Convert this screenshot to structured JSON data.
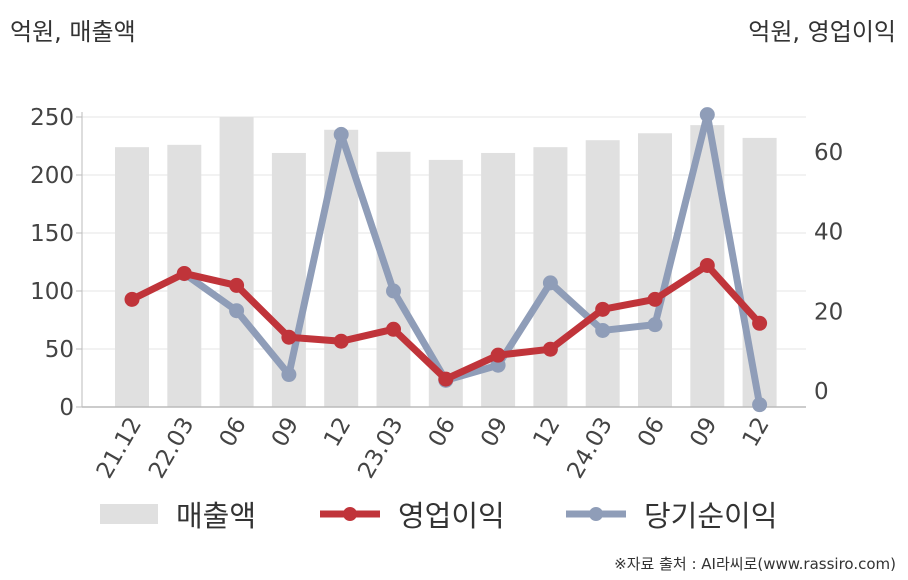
{
  "unit_left": "억원, 매출액",
  "unit_right": "억원, 영업이익",
  "source": "※자료 출처 : AI라씨로(www.rassiro.com)",
  "colors": {
    "revenue": "#e0e0e0",
    "operating_profit": "#c0343a",
    "net_income": "#8f9db8",
    "axis": "#bbbbbb",
    "grid": "#e6e6e6",
    "tick_text": "#444444"
  },
  "chart_data": {
    "type": "bar",
    "categories": [
      "21.12",
      "22.03",
      "06",
      "09",
      "12",
      "23.03",
      "06",
      "09",
      "12",
      "24.03",
      "06",
      "09",
      "12"
    ],
    "left_axis": {
      "ticks": [
        0,
        50,
        100,
        150,
        200,
        250
      ],
      "ylim": [
        0,
        250
      ]
    },
    "right_axis": {
      "ticks": [
        0,
        20,
        40,
        60
      ],
      "ylim": [
        -4,
        69
      ]
    },
    "series": [
      {
        "name": "매출액",
        "type": "bar",
        "axis": "left",
        "values": [
          224,
          226,
          250,
          219,
          239,
          220,
          213,
          219,
          224,
          230,
          236,
          243,
          232
        ]
      },
      {
        "name": "영업이익",
        "type": "line",
        "axis": "right",
        "values": [
          23,
          29.5,
          26.5,
          13.5,
          12.5,
          15.5,
          3,
          9,
          10.5,
          20.5,
          23,
          31.5,
          17
        ]
      },
      {
        "name": "당기순이익",
        "type": "line",
        "axis": "right",
        "values": null,
        "values_on_left_scale": [
          null,
          115,
          83,
          28,
          235,
          100,
          23,
          36,
          107,
          66,
          71,
          252,
          2
        ]
      }
    ],
    "legend_position": "bottom",
    "grid": true
  }
}
